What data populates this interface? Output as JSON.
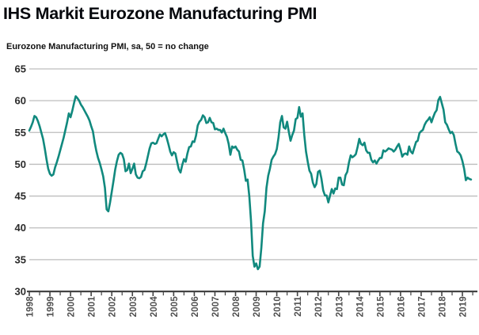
{
  "header": {
    "title": "IHS Markit Eurozone Manufacturing PMI",
    "subtitle": "Eurozone Manufacturing PMI, sa, 50 = no change"
  },
  "colors": {
    "line": "#11897E",
    "gridline": "#BDBDBD",
    "axis": "#444444",
    "y_label": "#2B2B2B",
    "x_label": "#4F4F4F",
    "background": "#FFFFFF",
    "title_text": "#06080D"
  },
  "chart_data": {
    "type": "line",
    "title": "IHS Markit Eurozone Manufacturing PMI",
    "subtitle": "Eurozone Manufacturing PMI, sa, 50 = no change",
    "grid": "horizontal",
    "legend": "none",
    "ylim": [
      30,
      65
    ],
    "y_ticks": [
      65,
      60,
      55,
      50,
      45,
      40,
      35,
      30
    ],
    "x_tick_labels": [
      "1998",
      "1999",
      "2000",
      "2001",
      "2002",
      "2003",
      "2004",
      "2005",
      "2006",
      "2007",
      "2008",
      "2009",
      "2010",
      "2011",
      "2012",
      "2013",
      "2014",
      "2015",
      "2016",
      "2017",
      "2018",
      "2019"
    ],
    "reference_level_50_means": "no change",
    "series": [
      {
        "name": "Eurozone Manufacturing PMI (sa)",
        "frequency": "monthly",
        "start": "1998-01",
        "end": "2019-06",
        "values": [
          55.3,
          55.9,
          56.6,
          57.6,
          57.4,
          56.8,
          56.0,
          55.0,
          54.0,
          52.5,
          50.8,
          49.3,
          48.5,
          48.2,
          48.4,
          49.5,
          50.3,
          51.2,
          52.2,
          53.2,
          54.2,
          55.4,
          56.6,
          58.0,
          57.4,
          58.4,
          59.6,
          60.7,
          60.4,
          60.0,
          59.4,
          59.0,
          58.5,
          58.0,
          57.5,
          56.9,
          56.0,
          55.2,
          53.5,
          52.1,
          51.0,
          50.2,
          49.2,
          48.1,
          46.3,
          42.9,
          42.6,
          44.0,
          45.7,
          47.4,
          49.2,
          50.5,
          51.5,
          51.8,
          51.6,
          50.8,
          48.9,
          49.1,
          50.1,
          48.6,
          49.3,
          50.1,
          48.4,
          47.9,
          47.8,
          48.0,
          48.9,
          49.1,
          50.1,
          51.3,
          52.5,
          53.3,
          53.4,
          53.2,
          53.3,
          54.0,
          54.7,
          54.4,
          54.7,
          54.9,
          54.1,
          53.1,
          52.0,
          51.4,
          51.9,
          51.7,
          50.4,
          49.2,
          48.7,
          49.9,
          50.8,
          50.4,
          51.7,
          52.7,
          52.8,
          53.6,
          53.5,
          54.5,
          56.1,
          56.7,
          57.0,
          57.7,
          57.4,
          56.5,
          56.6,
          57.3,
          56.6,
          56.5,
          55.5,
          55.6,
          55.4,
          55.4,
          55.0,
          55.6,
          54.9,
          54.3,
          53.2,
          51.5,
          52.8,
          52.6,
          52.8,
          52.3,
          52.0,
          50.7,
          50.6,
          49.2,
          47.4,
          47.6,
          45.0,
          41.1,
          35.6,
          33.9,
          34.4,
          33.5,
          33.9,
          36.8,
          40.7,
          42.6,
          46.3,
          48.2,
          49.3,
          50.7,
          51.2,
          51.6,
          52.4,
          54.2,
          56.6,
          57.6,
          55.8,
          55.6,
          56.7,
          55.1,
          53.7,
          54.6,
          55.3,
          57.1,
          57.3,
          59.0,
          57.5,
          58.0,
          54.6,
          52.0,
          50.4,
          49.0,
          48.5,
          47.1,
          46.4,
          46.9,
          48.8,
          49.0,
          47.7,
          45.9,
          45.1,
          45.1,
          44.0,
          45.1,
          46.1,
          45.4,
          46.2,
          46.1,
          47.9,
          47.9,
          46.8,
          46.7,
          48.3,
          48.8,
          50.3,
          51.4,
          51.1,
          51.3,
          51.6,
          52.7,
          54.0,
          53.2,
          53.0,
          53.4,
          52.2,
          51.8,
          51.8,
          50.7,
          50.3,
          50.6,
          50.1,
          50.6,
          51.0,
          51.0,
          52.2,
          52.0,
          52.2,
          52.5,
          52.4,
          52.3,
          52.0,
          52.3,
          52.8,
          53.2,
          52.3,
          51.2,
          51.6,
          51.7,
          51.5,
          52.8,
          52.0,
          51.7,
          52.6,
          53.5,
          53.7,
          54.9,
          55.2,
          55.4,
          56.2,
          56.7,
          57.0,
          57.4,
          56.6,
          57.4,
          58.1,
          58.5,
          60.1,
          60.6,
          59.6,
          58.6,
          56.6,
          56.2,
          55.5,
          54.9,
          55.1,
          54.6,
          53.2,
          52.0,
          51.8,
          51.4,
          50.5,
          49.3,
          47.5,
          47.9,
          47.7,
          47.6
        ]
      }
    ]
  }
}
